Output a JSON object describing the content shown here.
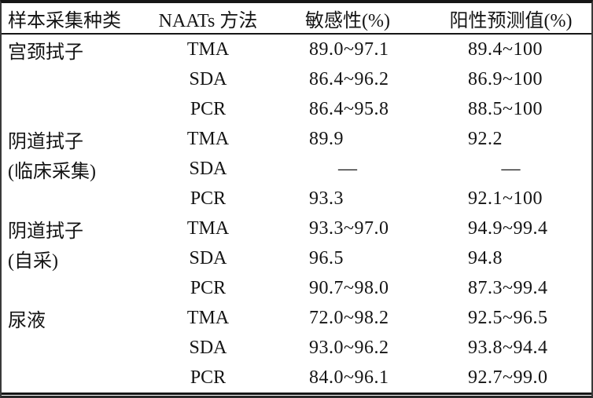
{
  "table": {
    "columns": [
      "样本采集种类",
      "NAATs 方法",
      "敏感性(%)",
      "阳性预测值(%)"
    ],
    "rows": [
      {
        "sample": "宫颈拭子",
        "method": "TMA",
        "sensitivity": "89.0~97.1",
        "ppv": "89.4~100"
      },
      {
        "sample": "",
        "method": "SDA",
        "sensitivity": "86.4~96.2",
        "ppv": "86.9~100"
      },
      {
        "sample": "",
        "method": "PCR",
        "sensitivity": "86.4~95.8",
        "ppv": "88.5~100"
      },
      {
        "sample": "阴道拭子",
        "method": "TMA",
        "sensitivity": "89.9",
        "ppv": "92.2"
      },
      {
        "sample": "(临床采集)",
        "method": "SDA",
        "sensitivity": "—",
        "ppv": "—"
      },
      {
        "sample": "",
        "method": "PCR",
        "sensitivity": "93.3",
        "ppv": "92.1~100"
      },
      {
        "sample": "阴道拭子",
        "method": "TMA",
        "sensitivity": "93.3~97.0",
        "ppv": "94.9~99.4"
      },
      {
        "sample": "(自采)",
        "method": "SDA",
        "sensitivity": "96.5",
        "ppv": "94.8"
      },
      {
        "sample": "",
        "method": "PCR",
        "sensitivity": "90.7~98.0",
        "ppv": "87.3~99.4"
      },
      {
        "sample": "尿液",
        "method": "TMA",
        "sensitivity": "72.0~98.2",
        "ppv": "92.5~96.5"
      },
      {
        "sample": "",
        "method": "SDA",
        "sensitivity": "93.0~96.2",
        "ppv": "93.8~94.4"
      },
      {
        "sample": "",
        "method": "PCR",
        "sensitivity": "84.0~96.1",
        "ppv": "92.7~99.0"
      }
    ]
  },
  "colors": {
    "text": "#141414",
    "rule": "#161616",
    "frame": "#3a3a3a",
    "background": "#ffffff"
  },
  "chart_data": {
    "type": "table",
    "title": "",
    "columns": [
      "样本采集种类",
      "NAATs 方法",
      "敏感性(%)",
      "阳性预测值(%)"
    ],
    "rows": [
      [
        "宫颈拭子",
        "TMA",
        "89.0~97.1",
        "89.4~100"
      ],
      [
        "",
        "SDA",
        "86.4~96.2",
        "86.9~100"
      ],
      [
        "",
        "PCR",
        "86.4~95.8",
        "88.5~100"
      ],
      [
        "阴道拭子",
        "TMA",
        "89.9",
        "92.2"
      ],
      [
        "(临床采集)",
        "SDA",
        "—",
        "—"
      ],
      [
        "",
        "PCR",
        "93.3",
        "92.1~100"
      ],
      [
        "阴道拭子",
        "TMA",
        "93.3~97.0",
        "94.9~99.4"
      ],
      [
        "(自采)",
        "SDA",
        "96.5",
        "94.8"
      ],
      [
        "",
        "PCR",
        "90.7~98.0",
        "87.3~99.4"
      ],
      [
        "尿液",
        "TMA",
        "72.0~98.2",
        "92.5~96.5"
      ],
      [
        "",
        "SDA",
        "93.0~96.2",
        "93.8~94.4"
      ],
      [
        "",
        "PCR",
        "84.0~96.1",
        "92.7~99.0"
      ]
    ]
  }
}
